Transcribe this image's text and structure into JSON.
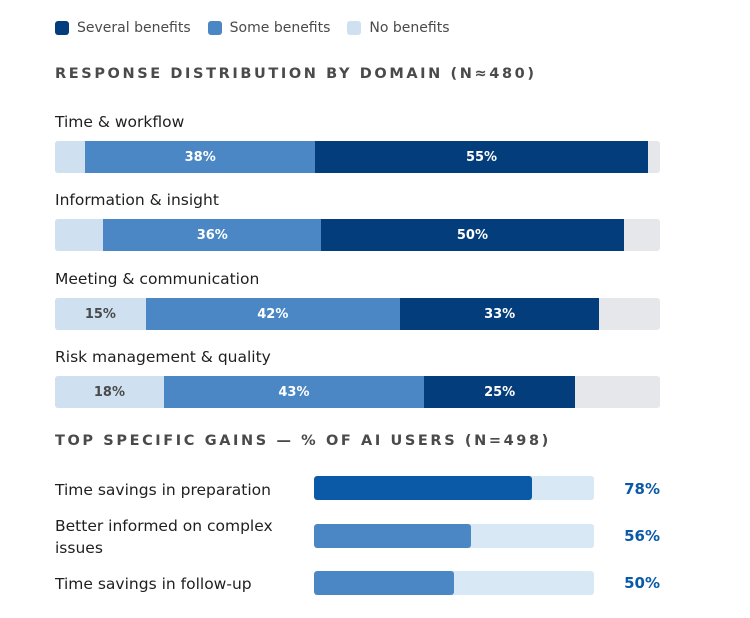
{
  "chart_data": [
    {
      "type": "bar",
      "orientation": "horizontal-stacked",
      "title": "RESPONSE DISTRIBUTION BY DOMAIN (N≈480)",
      "legend": [
        "Several benefits",
        "Some benefits",
        "No benefits"
      ],
      "legend_position": "top-left",
      "categories": [
        "Time & workflow",
        "Information & insight",
        "Meeting & communication",
        "Risk management & quality"
      ],
      "series": [
        {
          "name": "No benefits",
          "color": "#cfe1f1",
          "values": [
            5,
            8,
            15,
            18
          ],
          "labels": [
            "",
            "",
            "15%",
            "18%"
          ]
        },
        {
          "name": "Some benefits",
          "color": "#4a87c4",
          "values": [
            38,
            36,
            42,
            43
          ],
          "labels": [
            "38%",
            "36%",
            "42%",
            "43%"
          ]
        },
        {
          "name": "Several benefits",
          "color": "#043d7c",
          "values": [
            55,
            50,
            33,
            25
          ],
          "labels": [
            "55%",
            "50%",
            "33%",
            "25%"
          ]
        }
      ],
      "xlim": [
        0,
        100
      ]
    },
    {
      "type": "bar",
      "orientation": "horizontal",
      "title": "TOP SPECIFIC GAINS — % OF AI USERS (N=498)",
      "categories": [
        "Time savings in preparation",
        "Better informed on complex issues",
        "Time savings in follow-up"
      ],
      "values": [
        78,
        56,
        50
      ],
      "labels": [
        "78%",
        "56%",
        "50%"
      ],
      "colors": [
        "#0b5aa8",
        "#4a87c4",
        "#4a87c4"
      ],
      "xlim": [
        0,
        100
      ]
    }
  ],
  "legend": [
    {
      "label": "Several benefits",
      "color": "#043d7c"
    },
    {
      "label": "Some benefits",
      "color": "#4a87c4"
    },
    {
      "label": "No benefits",
      "color": "#cfe1f1"
    }
  ],
  "sections": {
    "distribution_title": "RESPONSE DISTRIBUTION BY DOMAIN (N≈480)",
    "gains_title": "TOP SPECIFIC GAINS — % OF AI USERS (N=498)"
  }
}
